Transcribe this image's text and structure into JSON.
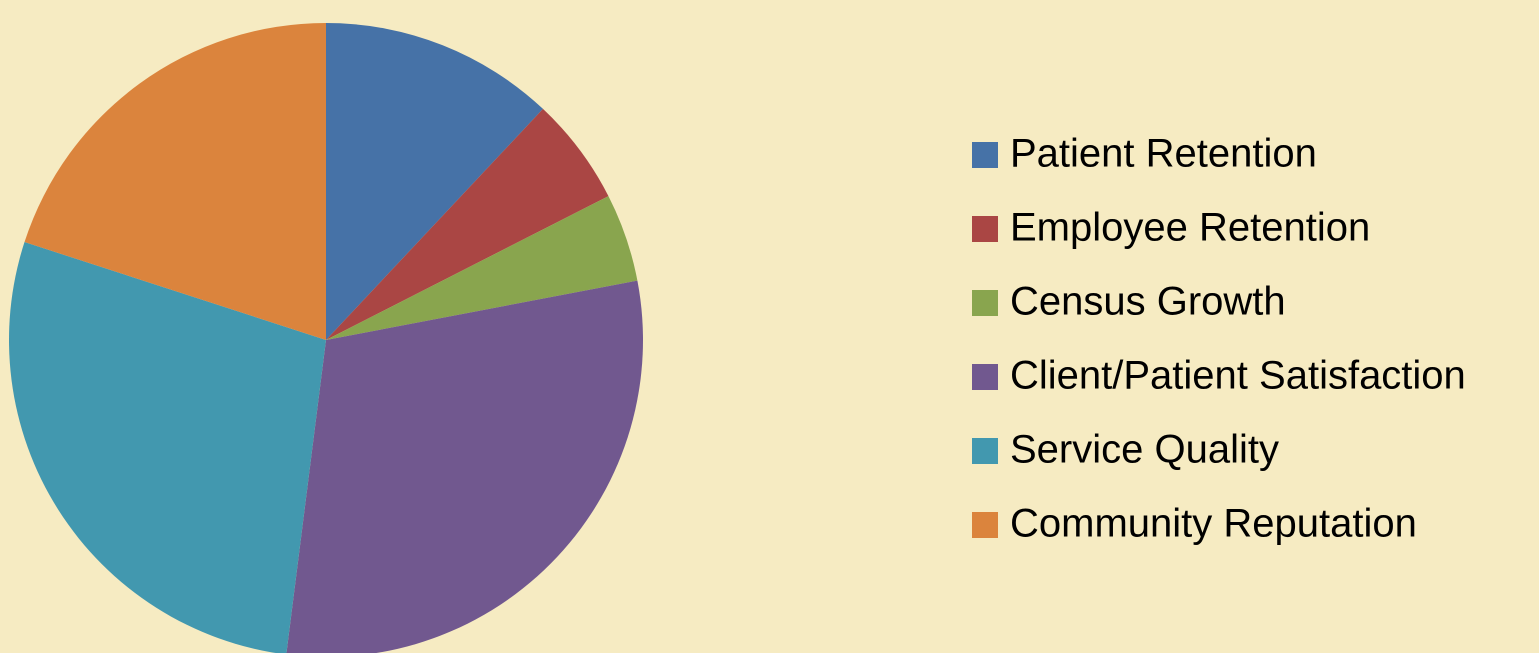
{
  "chart_data": {
    "type": "pie",
    "categories": [
      "Patient Retention",
      "Employee Retention",
      "Census Growth",
      "Client/Patient Satisfaction",
      "Service Quality",
      "Community Reputation"
    ],
    "values": [
      12,
      5.5,
      4.5,
      30,
      28,
      20
    ],
    "colors": [
      "#4672a7",
      "#aa4644",
      "#89a54e",
      "#71588f",
      "#4298af",
      "#db843d"
    ],
    "legend": "right"
  }
}
